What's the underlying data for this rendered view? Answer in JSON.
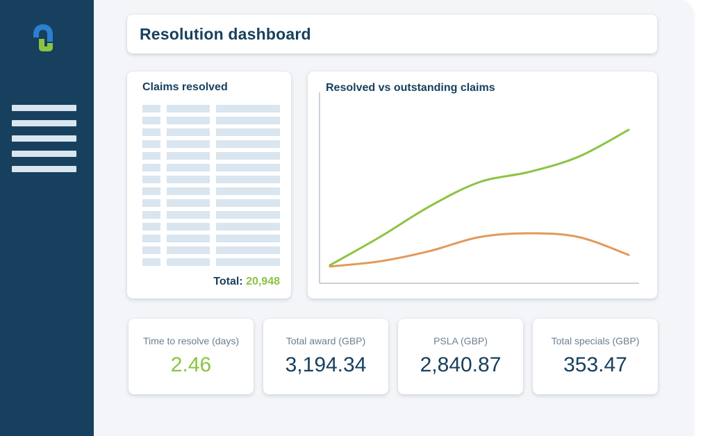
{
  "header": {
    "title": "Resolution dashboard"
  },
  "claims": {
    "title": "Claims resolved",
    "total_label": "Total:",
    "total_value": "20,948"
  },
  "chart_data": {
    "type": "line",
    "title": "Resolved vs outstanding claims",
    "xlabel": "",
    "ylabel": "",
    "grid": false,
    "legend": "none",
    "x": [
      0,
      1,
      2,
      3,
      4,
      5,
      6
    ],
    "ylim": [
      0,
      100
    ],
    "series": [
      {
        "values": [
          6,
          28,
          52,
          71,
          79,
          91,
          112
        ],
        "color": "#8cc342"
      },
      {
        "values": [
          5,
          9,
          17,
          28,
          31,
          28,
          14
        ],
        "color": "#e2995a"
      }
    ]
  },
  "stats": [
    {
      "label": "Time to resolve (days)",
      "value": "2.46",
      "highlight": true
    },
    {
      "label": "Total award (GBP)",
      "value": "3,194.34",
      "highlight": false
    },
    {
      "label": "PSLA (GBP)",
      "value": "2,840.87",
      "highlight": false
    },
    {
      "label": "Total specials (GBP)",
      "value": "353.47",
      "highlight": false
    }
  ],
  "colors": {
    "sidebar": "#17405e",
    "accent_green": "#8cc342",
    "accent_orange": "#e2995a",
    "text_dark": "#17405e"
  },
  "icons": {
    "logo": "app-logo-icon",
    "menu": "hamburger-menu-icon"
  }
}
